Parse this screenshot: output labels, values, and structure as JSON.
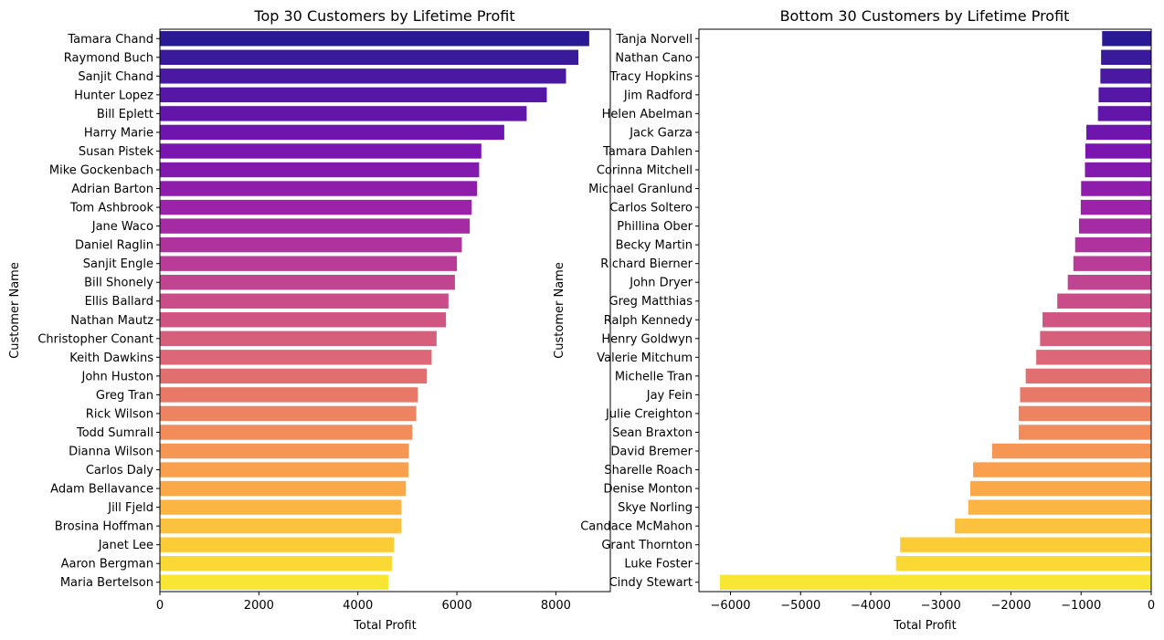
{
  "chart_data": [
    {
      "type": "bar",
      "orientation": "horizontal",
      "title": "Top 30 Customers by Lifetime Profit",
      "xlabel": "Total Profit",
      "ylabel": "Customer Name",
      "xlim": [
        0,
        9100
      ],
      "xticks": [
        0,
        2000,
        4000,
        6000,
        8000
      ],
      "xtick_labels": [
        "0",
        "2000",
        "4000",
        "6000",
        "8000"
      ],
      "grid": false,
      "palette": "plasma",
      "categories": [
        "Tamara Chand",
        "Raymond Buch",
        "Sanjit Chand",
        "Hunter Lopez",
        "Bill Eplett",
        "Harry Marie",
        "Susan Pistek",
        "Mike Gockenbach",
        "Adrian Barton",
        "Tom Ashbrook",
        "Jane Waco",
        "Daniel Raglin",
        "Sanjit Engle",
        "Bill Shonely",
        "Ellis Ballard",
        "Nathan Mautz",
        "Christopher Conant",
        "Keith Dawkins",
        "John Huston",
        "Greg Tran",
        "Rick Wilson",
        "Todd Sumrall",
        "Dianna Wilson",
        "Carlos Daly",
        "Adam Bellavance",
        "Jill Fjeld",
        "Brosina Hoffman",
        "Janet Lee",
        "Aaron Bergman",
        "Maria Bertelson"
      ],
      "values": [
        8673,
        8454,
        8205,
        7817,
        7410,
        6957,
        6494,
        6450,
        6410,
        6300,
        6260,
        6100,
        6000,
        5960,
        5830,
        5780,
        5590,
        5490,
        5390,
        5210,
        5180,
        5100,
        5030,
        5020,
        4970,
        4880,
        4880,
        4730,
        4690,
        4620
      ]
    },
    {
      "type": "bar",
      "orientation": "horizontal",
      "title": "Bottom 30 Customers by Lifetime Profit",
      "xlabel": "Total Profit",
      "ylabel": "Customer Name",
      "xlim": [
        -6450,
        0
      ],
      "xticks": [
        -6000,
        -5000,
        -4000,
        -3000,
        -2000,
        -1000,
        0
      ],
      "xtick_labels": [
        "−6000",
        "−5000",
        "−4000",
        "−3000",
        "−2000",
        "−1000",
        "0"
      ],
      "grid": false,
      "palette": "plasma",
      "categories": [
        "Tanja Norvell",
        "Nathan Cano",
        "Tracy Hopkins",
        "Jim Radford",
        "Helen Abelman",
        "Jack Garza",
        "Tamara Dahlen",
        "Corinna Mitchell",
        "Michael Granlund",
        "Carlos Soltero",
        "Phillina Ober",
        "Becky Martin",
        "Richard Bierner",
        "John Dryer",
        "Greg Matthias",
        "Ralph Kennedy",
        "Henry Goldwyn",
        "Valerie Mitchum",
        "Michelle Tran",
        "Jay Fein",
        "Julie Creighton",
        "Sean Braxton",
        "David Bremer",
        "Sharelle Roach",
        "Denise Monton",
        "Skye Norling",
        "Candace McMahon",
        "Grant Thornton",
        "Luke Foster",
        "Cindy Stewart"
      ],
      "values": [
        -700,
        -715,
        -725,
        -750,
        -760,
        -925,
        -940,
        -945,
        -1000,
        -1005,
        -1030,
        -1085,
        -1110,
        -1190,
        -1340,
        -1550,
        -1585,
        -1640,
        -1790,
        -1870,
        -1890,
        -1890,
        -2270,
        -2540,
        -2580,
        -2610,
        -2800,
        -3580,
        -3640,
        -6152
      ]
    }
  ]
}
